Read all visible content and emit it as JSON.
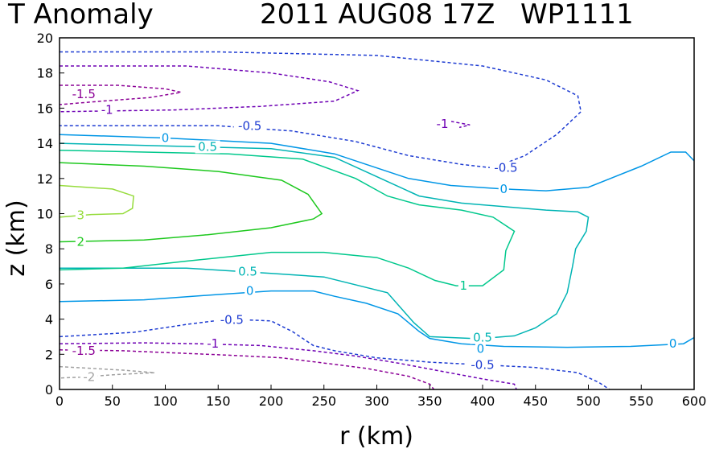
{
  "chart_data": {
    "type": "contour",
    "title": {
      "variable": "T Anomaly",
      "datetime": "2011 AUG08 17Z",
      "storm": "WP1111"
    },
    "xlabel": "r (km)",
    "ylabel": "z (km)",
    "xlim": [
      0,
      600
    ],
    "ylim": [
      0,
      20
    ],
    "xticks": [
      0,
      50,
      100,
      150,
      200,
      250,
      300,
      350,
      400,
      450,
      500,
      550,
      600
    ],
    "yticks": [
      0,
      2,
      4,
      6,
      8,
      10,
      12,
      14,
      16,
      18,
      20
    ],
    "grid": false,
    "levels": [
      {
        "value": -2,
        "label": "-2",
        "color": "#a0a0a0",
        "dashed": true
      },
      {
        "value": -1.5,
        "label": "-1.5",
        "color": "#8c0096",
        "dashed": true
      },
      {
        "value": -1,
        "label": "-1",
        "color": "#6e00b4",
        "dashed": true
      },
      {
        "value": -0.5,
        "label": "-0.5",
        "color": "#1e3cd2",
        "dashed": true
      },
      {
        "value": 0,
        "label": "0",
        "color": "#0096e6",
        "dashed": false
      },
      {
        "value": 0.5,
        "label": "0.5",
        "color": "#00b4b4",
        "dashed": false
      },
      {
        "value": 1,
        "label": "1",
        "color": "#00c88c",
        "dashed": false
      },
      {
        "value": 2,
        "label": "2",
        "color": "#1ec81e",
        "dashed": false
      },
      {
        "value": 3,
        "label": "3",
        "color": "#96dc3c",
        "dashed": false
      }
    ],
    "contours": [
      {
        "level": "-0.5",
        "points": [
          [
            0,
            19.2
          ],
          [
            150,
            19.2
          ],
          [
            300,
            19.0
          ],
          [
            400,
            18.4
          ],
          [
            460,
            17.6
          ],
          [
            490,
            16.7
          ],
          [
            493,
            15.8
          ],
          [
            470,
            14.5
          ],
          [
            440,
            13.3
          ],
          [
            410,
            12.6
          ],
          [
            380,
            12.8
          ],
          [
            330,
            13.3
          ],
          [
            280,
            14.1
          ],
          [
            220,
            14.7
          ],
          [
            150,
            15.0
          ],
          [
            0,
            15.0
          ]
        ],
        "labels": [
          {
            "text": "-0.5",
            "x": 180,
            "y": 15.0
          },
          {
            "text": "-0.5",
            "x": 422,
            "y": 12.6
          }
        ]
      },
      {
        "level": "-1",
        "points": [
          [
            0,
            18.4
          ],
          [
            120,
            18.4
          ],
          [
            200,
            18.0
          ],
          [
            255,
            17.5
          ],
          [
            282,
            17.0
          ],
          [
            260,
            16.4
          ],
          [
            190,
            16.1
          ],
          [
            110,
            15.9
          ],
          [
            0,
            15.8
          ]
        ],
        "labels": [
          {
            "text": "-1",
            "x": 45,
            "y": 15.9
          }
        ]
      },
      {
        "level": "-1.5",
        "points": [
          [
            0,
            17.3
          ],
          [
            55,
            17.3
          ],
          [
            100,
            17.1
          ],
          [
            115,
            16.9
          ],
          [
            85,
            16.6
          ],
          [
            40,
            16.4
          ],
          [
            0,
            16.2
          ]
        ],
        "labels": [
          {
            "text": "-1.5",
            "x": 23,
            "y": 16.8
          }
        ]
      },
      {
        "level": "-1",
        "points": [
          [
            370,
            15.25
          ],
          [
            388,
            15.05
          ],
          [
            378,
            14.9
          ]
        ],
        "labels": [
          {
            "text": "-1",
            "x": 362,
            "y": 15.1
          }
        ]
      },
      {
        "level": "0",
        "points": [
          [
            0,
            14.5
          ],
          [
            100,
            14.3
          ],
          [
            200,
            14.0
          ],
          [
            260,
            13.4
          ],
          [
            300,
            12.6
          ],
          [
            330,
            12.0
          ],
          [
            370,
            11.6
          ],
          [
            420,
            11.4
          ],
          [
            460,
            11.3
          ],
          [
            500,
            11.5
          ],
          [
            550,
            12.7
          ],
          [
            578,
            13.5
          ],
          [
            592,
            13.5
          ],
          [
            600,
            13.0
          ]
        ],
        "labels": [
          {
            "text": "0",
            "x": 100,
            "y": 14.3
          },
          {
            "text": "0",
            "x": 420,
            "y": 11.4
          }
        ]
      },
      {
        "level": "0.5",
        "points": [
          [
            0,
            14.0
          ],
          [
            100,
            13.85
          ],
          [
            200,
            13.7
          ],
          [
            260,
            13.2
          ],
          [
            300,
            12.1
          ],
          [
            340,
            11.0
          ],
          [
            380,
            10.6
          ],
          [
            420,
            10.4
          ],
          [
            460,
            10.2
          ],
          [
            490,
            10.1
          ],
          [
            500,
            9.8
          ],
          [
            498,
            9.0
          ],
          [
            488,
            8.0
          ],
          [
            485,
            7.0
          ],
          [
            480,
            5.5
          ],
          [
            470,
            4.3
          ],
          [
            450,
            3.5
          ],
          [
            430,
            3.05
          ],
          [
            410,
            2.95
          ],
          [
            390,
            2.9
          ],
          [
            350,
            3.0
          ],
          [
            335,
            3.8
          ],
          [
            310,
            5.5
          ],
          [
            250,
            6.4
          ],
          [
            200,
            6.6
          ],
          [
            120,
            6.9
          ],
          [
            0,
            6.9
          ]
        ],
        "labels": [
          {
            "text": "0.5",
            "x": 140,
            "y": 13.8
          },
          {
            "text": "0.5",
            "x": 178,
            "y": 6.7
          },
          {
            "text": "0.5",
            "x": 400,
            "y": 2.95
          }
        ]
      },
      {
        "level": "1",
        "points": [
          [
            0,
            13.6
          ],
          [
            80,
            13.5
          ],
          [
            160,
            13.4
          ],
          [
            230,
            13.1
          ],
          [
            280,
            12.0
          ],
          [
            310,
            11.0
          ],
          [
            340,
            10.5
          ],
          [
            380,
            10.2
          ],
          [
            410,
            9.8
          ],
          [
            430,
            9.0
          ],
          [
            422,
            7.9
          ],
          [
            420,
            6.8
          ],
          [
            400,
            5.9
          ],
          [
            375,
            5.9
          ],
          [
            355,
            6.2
          ],
          [
            330,
            6.9
          ],
          [
            300,
            7.5
          ],
          [
            250,
            7.8
          ],
          [
            200,
            7.8
          ],
          [
            120,
            7.3
          ],
          [
            60,
            6.9
          ],
          [
            0,
            6.8
          ]
        ],
        "labels": [
          {
            "text": "1",
            "x": 382,
            "y": 5.9
          }
        ]
      },
      {
        "level": "2",
        "points": [
          [
            0,
            12.9
          ],
          [
            80,
            12.7
          ],
          [
            150,
            12.4
          ],
          [
            210,
            11.9
          ],
          [
            235,
            11.1
          ],
          [
            248,
            10.0
          ],
          [
            240,
            9.7
          ],
          [
            200,
            9.2
          ],
          [
            140,
            8.8
          ],
          [
            80,
            8.5
          ],
          [
            0,
            8.4
          ]
        ],
        "labels": [
          {
            "text": "2",
            "x": 20,
            "y": 8.4
          }
        ]
      },
      {
        "level": "3",
        "points": [
          [
            0,
            11.6
          ],
          [
            50,
            11.4
          ],
          [
            70,
            11.0
          ],
          [
            69,
            10.3
          ],
          [
            60,
            10.0
          ],
          [
            30,
            9.95
          ],
          [
            0,
            9.8
          ]
        ],
        "labels": [
          {
            "text": "3",
            "x": 20,
            "y": 9.9
          }
        ]
      },
      {
        "level": "0",
        "points": [
          [
            0,
            5.0
          ],
          [
            80,
            5.1
          ],
          [
            150,
            5.4
          ],
          [
            200,
            5.6
          ],
          [
            240,
            5.6
          ],
          [
            260,
            5.3
          ],
          [
            290,
            4.9
          ],
          [
            320,
            4.3
          ],
          [
            340,
            3.3
          ],
          [
            350,
            2.9
          ],
          [
            380,
            2.6
          ],
          [
            420,
            2.45
          ],
          [
            480,
            2.4
          ],
          [
            540,
            2.45
          ],
          [
            590,
            2.6
          ],
          [
            600,
            2.95
          ]
        ],
        "labels": [
          {
            "text": "0",
            "x": 180,
            "y": 5.6
          },
          {
            "text": "0",
            "x": 398,
            "y": 2.3
          },
          {
            "text": "0",
            "x": 580,
            "y": 2.6
          }
        ]
      },
      {
        "level": "-0.5",
        "points": [
          [
            0,
            3.0
          ],
          [
            70,
            3.25
          ],
          [
            120,
            3.7
          ],
          [
            160,
            4.0
          ],
          [
            200,
            3.9
          ],
          [
            220,
            3.3
          ],
          [
            240,
            2.5
          ],
          [
            260,
            2.2
          ],
          [
            300,
            1.8
          ],
          [
            350,
            1.55
          ],
          [
            400,
            1.4
          ],
          [
            450,
            1.25
          ],
          [
            490,
            0.95
          ],
          [
            510,
            0.4
          ],
          [
            520,
            0
          ]
        ],
        "labels": [
          {
            "text": "-0.5",
            "x": 163,
            "y": 3.95
          },
          {
            "text": "-0.5",
            "x": 400,
            "y": 1.4
          }
        ]
      },
      {
        "level": "-1",
        "points": [
          [
            0,
            2.6
          ],
          [
            80,
            2.65
          ],
          [
            130,
            2.6
          ],
          [
            190,
            2.5
          ],
          [
            240,
            2.2
          ],
          [
            280,
            1.9
          ],
          [
            320,
            1.5
          ],
          [
            360,
            1.05
          ],
          [
            400,
            0.6
          ],
          [
            430,
            0.3
          ],
          [
            432,
            0
          ]
        ],
        "labels": [
          {
            "text": "-1",
            "x": 145,
            "y": 2.6
          }
        ]
      },
      {
        "level": "-1.5",
        "points": [
          [
            0,
            2.25
          ],
          [
            60,
            2.2
          ],
          [
            100,
            2.1
          ],
          [
            160,
            1.95
          ],
          [
            210,
            1.8
          ],
          [
            250,
            1.5
          ],
          [
            290,
            1.2
          ],
          [
            330,
            0.75
          ],
          [
            350,
            0.3
          ],
          [
            354,
            0
          ]
        ],
        "labels": [
          {
            "text": "-1.5",
            "x": 23,
            "y": 2.2
          }
        ]
      },
      {
        "level": "-2",
        "points": [
          [
            0,
            1.3
          ],
          [
            60,
            1.1
          ],
          [
            90,
            0.95
          ],
          [
            55,
            0.85
          ],
          [
            20,
            0.7
          ],
          [
            0,
            0.65
          ]
        ],
        "labels": [
          {
            "text": "-2",
            "x": 28,
            "y": 0.7
          }
        ]
      }
    ]
  }
}
